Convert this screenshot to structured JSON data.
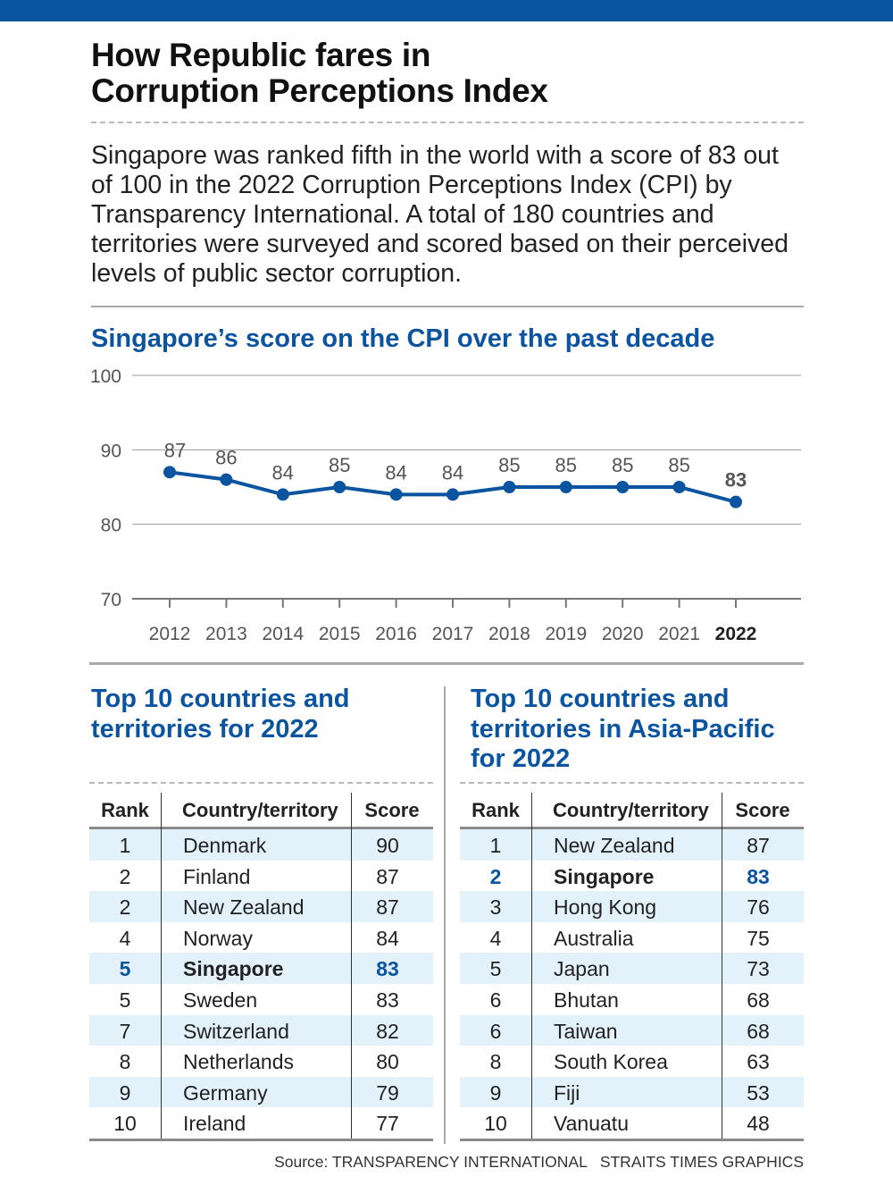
{
  "header": {
    "title_line1": "How Republic fares in",
    "title_line2": "Corruption Perceptions Index",
    "intro": "Singapore was ranked fifth in the world with a score of 83 out of 100 in the 2022 Corruption Perceptions Index (CPI) by Transparency International. A total of 180 countries and territories were surveyed and scored based on their perceived levels of public sector corruption."
  },
  "colors": {
    "accent": "#0b54a0",
    "row_shade": "#e3f1fb",
    "grid": "#9a9a9a"
  },
  "chart_data": {
    "type": "line",
    "title": "Singapore’s score on the CPI over the past decade",
    "x": [
      "2012",
      "2013",
      "2014",
      "2015",
      "2016",
      "2017",
      "2018",
      "2019",
      "2020",
      "2021",
      "2022"
    ],
    "series": [
      {
        "name": "Singapore CPI score",
        "values": [
          87,
          86,
          84,
          85,
          84,
          84,
          85,
          85,
          85,
          85,
          83
        ]
      }
    ],
    "ylim": [
      70,
      100
    ],
    "yticks": [
      70,
      80,
      90,
      100
    ],
    "xlabel": "",
    "ylabel": "",
    "highlight_x": "2022",
    "grid": true
  },
  "table_world": {
    "title": "Top 10 countries and territories for 2022",
    "headers": {
      "rank": "Rank",
      "country": "Country/territory",
      "score": "Score"
    },
    "rows": [
      {
        "rank": "1",
        "country": "Denmark",
        "score": "90"
      },
      {
        "rank": "2",
        "country": "Finland",
        "score": "87"
      },
      {
        "rank": "2",
        "country": "New Zealand",
        "score": "87"
      },
      {
        "rank": "4",
        "country": "Norway",
        "score": "84"
      },
      {
        "rank": "5",
        "country": "Singapore",
        "score": "83",
        "highlight": true
      },
      {
        "rank": "5",
        "country": "Sweden",
        "score": "83"
      },
      {
        "rank": "7",
        "country": "Switzerland",
        "score": "82"
      },
      {
        "rank": "8",
        "country": "Netherlands",
        "score": "80"
      },
      {
        "rank": "9",
        "country": "Germany",
        "score": "79"
      },
      {
        "rank": "10",
        "country": "Ireland",
        "score": "77"
      }
    ]
  },
  "table_asia": {
    "title": "Top 10 countries and territories in Asia-Pacific for 2022",
    "headers": {
      "rank": "Rank",
      "country": "Country/territory",
      "score": "Score"
    },
    "rows": [
      {
        "rank": "1",
        "country": "New Zealand",
        "score": "87"
      },
      {
        "rank": "2",
        "country": "Singapore",
        "score": "83",
        "highlight": true
      },
      {
        "rank": "3",
        "country": "Hong Kong",
        "score": "76"
      },
      {
        "rank": "4",
        "country": "Australia",
        "score": "75"
      },
      {
        "rank": "5",
        "country": "Japan",
        "score": "73"
      },
      {
        "rank": "6",
        "country": "Bhutan",
        "score": "68"
      },
      {
        "rank": "6",
        "country": "Taiwan",
        "score": "68"
      },
      {
        "rank": "8",
        "country": "South Korea",
        "score": "63"
      },
      {
        "rank": "9",
        "country": "Fiji",
        "score": "53"
      },
      {
        "rank": "10",
        "country": "Vanuatu",
        "score": "48"
      }
    ]
  },
  "footer": {
    "source": "Source: TRANSPARENCY INTERNATIONAL",
    "credit": "STRAITS TIMES GRAPHICS"
  }
}
